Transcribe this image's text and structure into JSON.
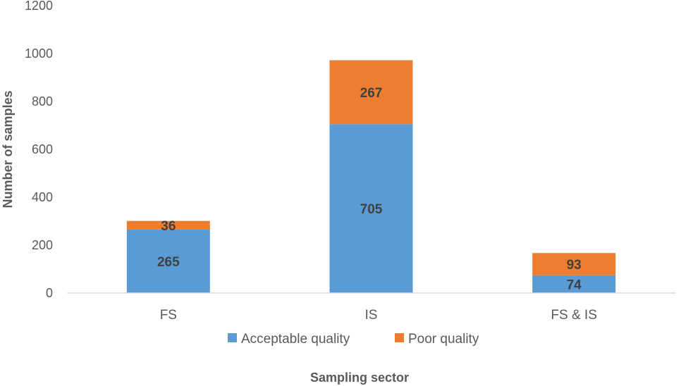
{
  "chart_data": {
    "type": "bar",
    "stacked": true,
    "title": "",
    "xlabel": "Sampling sector",
    "ylabel": "Number of samples",
    "categories": [
      "FS",
      "IS",
      "FS & IS"
    ],
    "series": [
      {
        "name": "Acceptable quality",
        "values": [
          265,
          705,
          74
        ],
        "color": "#5b9bd5"
      },
      {
        "name": "Poor quality",
        "values": [
          36,
          267,
          93
        ],
        "color": "#ed7d31"
      }
    ],
    "ylim": [
      0,
      1200
    ],
    "yticks": [
      0,
      200,
      400,
      600,
      800,
      1000,
      1200
    ],
    "grid": false,
    "legend": "bottom",
    "axis_color": "#d9d9d9"
  }
}
